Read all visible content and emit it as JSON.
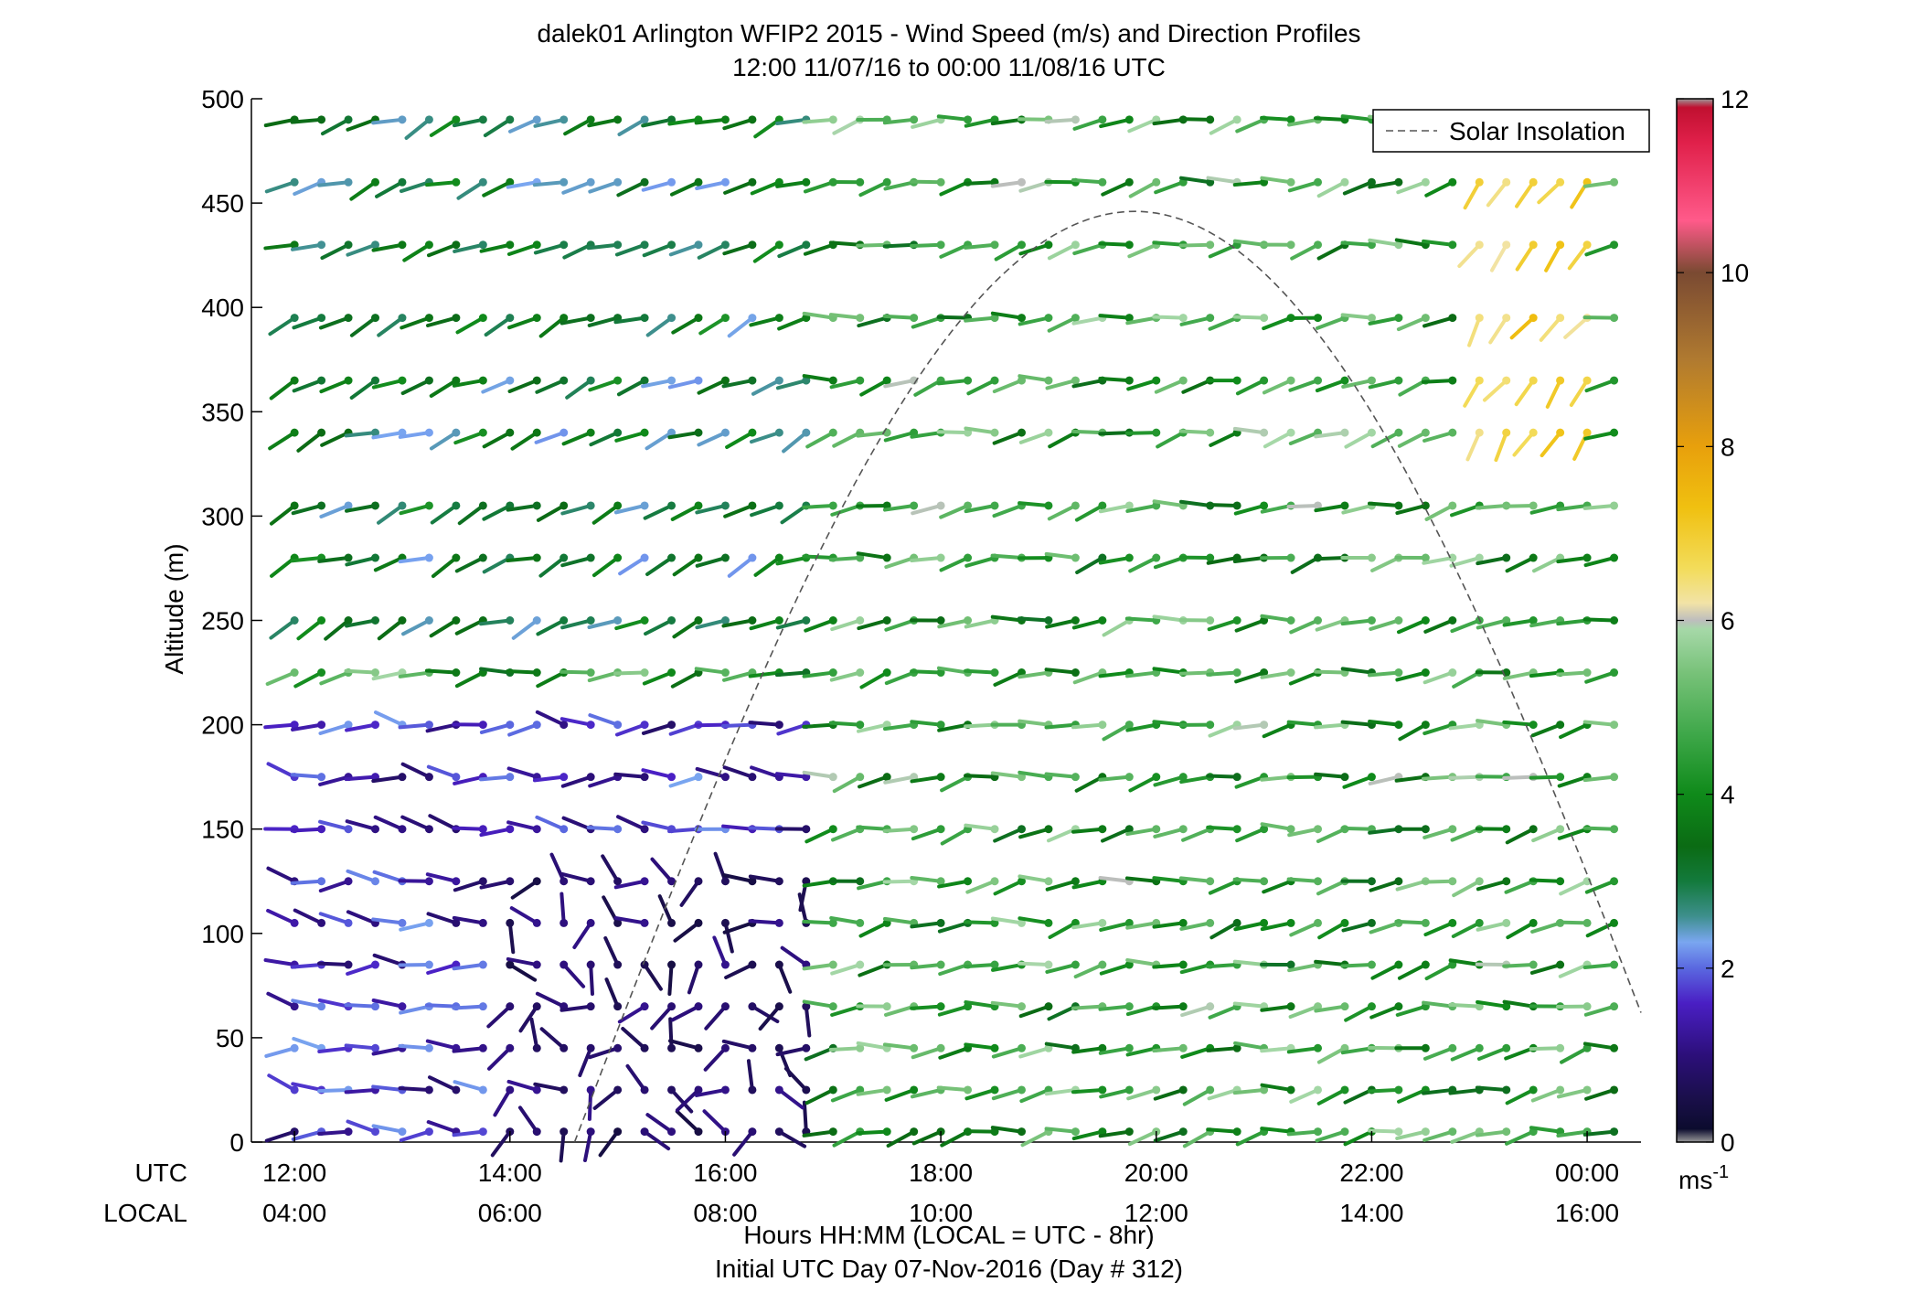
{
  "chart_data": {
    "type": "wind-barb-profile",
    "title": "dalek01 Arlington WFIP2 2015 - Wind Speed (m/s) and Direction Profiles",
    "subtitle": "12:00 11/07/16 to 00:00 11/08/16  UTC",
    "ylabel": "Altitude (m)",
    "xlabel": "Hours HH:MM  (LOCAL = UTC - 8hr)",
    "xlabel2": "Initial UTC Day 07-Nov-2016 (Day # 312)",
    "row_labels": [
      "UTC",
      "LOCAL"
    ],
    "x_range_hours_utc": [
      11.6,
      24.5
    ],
    "ylim": [
      0,
      500
    ],
    "y_ticks": [
      0,
      50,
      100,
      150,
      200,
      250,
      300,
      350,
      400,
      450,
      500
    ],
    "x_ticks": [
      {
        "hour": 12,
        "utc": "12:00",
        "local": "04:00"
      },
      {
        "hour": 14,
        "utc": "14:00",
        "local": "06:00"
      },
      {
        "hour": 16,
        "utc": "16:00",
        "local": "08:00"
      },
      {
        "hour": 18,
        "utc": "18:00",
        "local": "10:00"
      },
      {
        "hour": 20,
        "utc": "20:00",
        "local": "12:00"
      },
      {
        "hour": 22,
        "utc": "22:00",
        "local": "14:00"
      },
      {
        "hour": 24,
        "utc": "00:00",
        "local": "16:00"
      }
    ],
    "legend": {
      "label": "Solar Insolation",
      "placement": "top-right",
      "style": "dashed",
      "color": "#555555"
    },
    "colorbar": {
      "range": [
        0,
        12
      ],
      "ticks": [
        0,
        2,
        4,
        6,
        8,
        10,
        12
      ],
      "unit": "ms",
      "unit_exp": "-1",
      "stops": [
        {
          "v": 0.0,
          "c": "#999999"
        },
        {
          "v": 0.15,
          "c": "#0c0c2e"
        },
        {
          "v": 0.5,
          "c": "#1a0f4a"
        },
        {
          "v": 1.0,
          "c": "#2c0f7a"
        },
        {
          "v": 1.6,
          "c": "#4a1fc4"
        },
        {
          "v": 2.0,
          "c": "#5a68e0"
        },
        {
          "v": 2.3,
          "c": "#7aa6f0"
        },
        {
          "v": 2.6,
          "c": "#3d8f8c"
        },
        {
          "v": 3.0,
          "c": "#137a3c"
        },
        {
          "v": 3.4,
          "c": "#0b6b14"
        },
        {
          "v": 4.0,
          "c": "#0f8a1a"
        },
        {
          "v": 4.7,
          "c": "#3fa84a"
        },
        {
          "v": 5.4,
          "c": "#78c279"
        },
        {
          "v": 5.9,
          "c": "#a6d8a8"
        },
        {
          "v": 6.0,
          "c": "#bdbdbd"
        },
        {
          "v": 6.2,
          "c": "#f2e3a6"
        },
        {
          "v": 6.6,
          "c": "#f3dc5a"
        },
        {
          "v": 7.3,
          "c": "#f0c010"
        },
        {
          "v": 8.0,
          "c": "#e8a00c"
        },
        {
          "v": 9.0,
          "c": "#b07a30"
        },
        {
          "v": 10.0,
          "c": "#7a4a32"
        },
        {
          "v": 10.6,
          "c": "#ff5a8a"
        },
        {
          "v": 11.5,
          "c": "#e0204a"
        },
        {
          "v": 11.9,
          "c": "#c01030"
        },
        {
          "v": 12.0,
          "c": "#999999"
        }
      ]
    },
    "levels_m": [
      5,
      25,
      45,
      65,
      85,
      105,
      125,
      150,
      175,
      200,
      225,
      250,
      280,
      305,
      340,
      365,
      395,
      430,
      460,
      490
    ],
    "times_hours_utc": {
      "start": 12.0,
      "end": 24.25,
      "step": 0.25
    },
    "insolation": {
      "peak_hour_utc": 19.8,
      "peak_m": 446,
      "start_hour_utc": 14.6,
      "end_hour_utc": 24.5,
      "end_m": 62
    },
    "wind_regimes": [
      {
        "zone": "nocturnal-low",
        "hours": [
          12.0,
          16.8
        ],
        "max_level_m": 220,
        "speed_ms": [
          0.8,
          2.3
        ],
        "direction_deg": [
          250,
          300
        ]
      },
      {
        "zone": "calm-core",
        "hours": [
          13.8,
          16.8
        ],
        "max_level_m": 130,
        "speed_ms": [
          0.4,
          1.2
        ],
        "direction_deg": [
          120,
          360
        ]
      },
      {
        "zone": "morning-upper",
        "hours": [
          12.0,
          16.8
        ],
        "min_level_m": 230,
        "speed_ms": [
          2.2,
          4.2
        ],
        "direction_deg": [
          230,
          265
        ]
      },
      {
        "zone": "daytime-mixed",
        "hours": [
          16.8,
          24.3
        ],
        "speed_ms": [
          3.2,
          6.0
        ],
        "direction_deg": [
          240,
          280
        ]
      },
      {
        "zone": "afternoon-upper",
        "hours": [
          22.8,
          24.0
        ],
        "min_level_m": 330,
        "speed_ms": [
          6.2,
          7.4
        ],
        "direction_deg": [
          200,
          230
        ]
      }
    ]
  }
}
